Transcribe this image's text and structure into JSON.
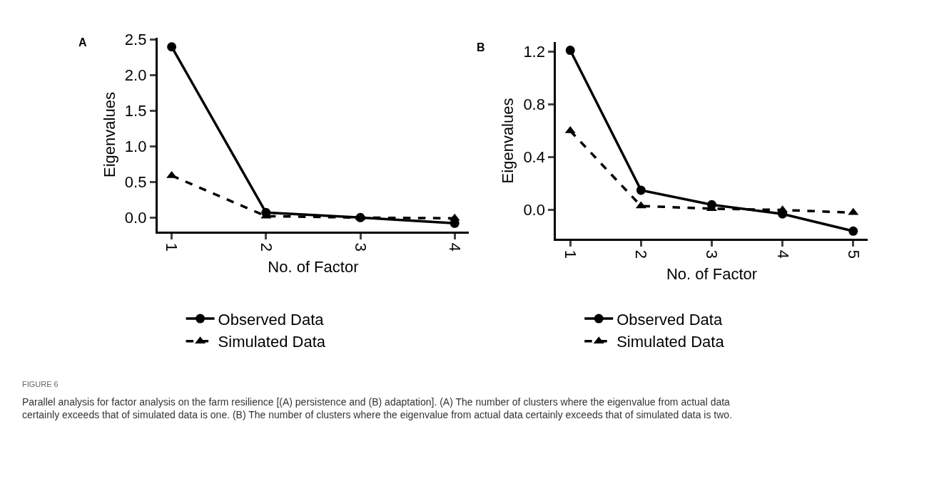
{
  "chart_data": [
    {
      "type": "line",
      "title": "A",
      "xlabel": "No. of Factor",
      "ylabel": "Eigenvalues",
      "x": [
        1,
        2,
        3,
        4
      ],
      "xlim": [
        0.85,
        4.15
      ],
      "xticks": [
        1,
        2,
        3,
        4
      ],
      "ylim": [
        -0.2,
        2.53
      ],
      "yticks": [
        {
          "value": 0,
          "label": "0.0"
        },
        0.5,
        {
          "value": 1,
          "label": "1.0"
        },
        1.5,
        {
          "value": 2,
          "label": "2.0"
        },
        2.5
      ],
      "legend": "bottom",
      "series": [
        {
          "name": "Observed Data",
          "color": "#000000",
          "values": [
            2.4,
            0.07,
            0.0,
            -0.08
          ],
          "marker": "circle",
          "line_style": "solid"
        },
        {
          "name": "Simulated Data",
          "color": "#000000",
          "values": [
            0.59,
            0.02,
            0.0,
            -0.01
          ],
          "marker": "triangle",
          "line_style": "dashed"
        }
      ],
      "annotations": [
        "FIGURE 6",
        "Parallel analysis for factor analysis on the farm resilience [(A) persistence and (B) adaptation]. (A) The number of clusters where the eigenvalue from actual data certainly exceeds that of simulated data is one. (B) The number of clusters where the eigenvalue from actual data certainly exceeds that of simulated data is two."
      ]
    },
    {
      "type": "line",
      "title": "B",
      "xlabel": "No. of Factor",
      "ylabel": "Eigenvalues",
      "x": [
        1,
        2,
        3,
        4,
        5
      ],
      "xlim": [
        0.8,
        5.2
      ],
      "xticks": [
        1,
        2,
        3,
        4,
        5
      ],
      "ylim": [
        -0.22,
        1.27
      ],
      "yticks": [
        {
          "value": 0,
          "label": "0.0"
        },
        0.4,
        0.8,
        1.2
      ],
      "legend": "bottom",
      "series": [
        {
          "name": "Observed Data",
          "color": "#000000",
          "values": [
            1.21,
            0.15,
            0.04,
            -0.03,
            -0.16
          ],
          "marker": "circle",
          "line_style": "solid"
        },
        {
          "name": "Simulated Data",
          "color": "#000000",
          "values": [
            0.6,
            0.03,
            0.01,
            0.0,
            -0.02
          ],
          "marker": "triangle",
          "line_style": "dashed"
        }
      ]
    }
  ]
}
